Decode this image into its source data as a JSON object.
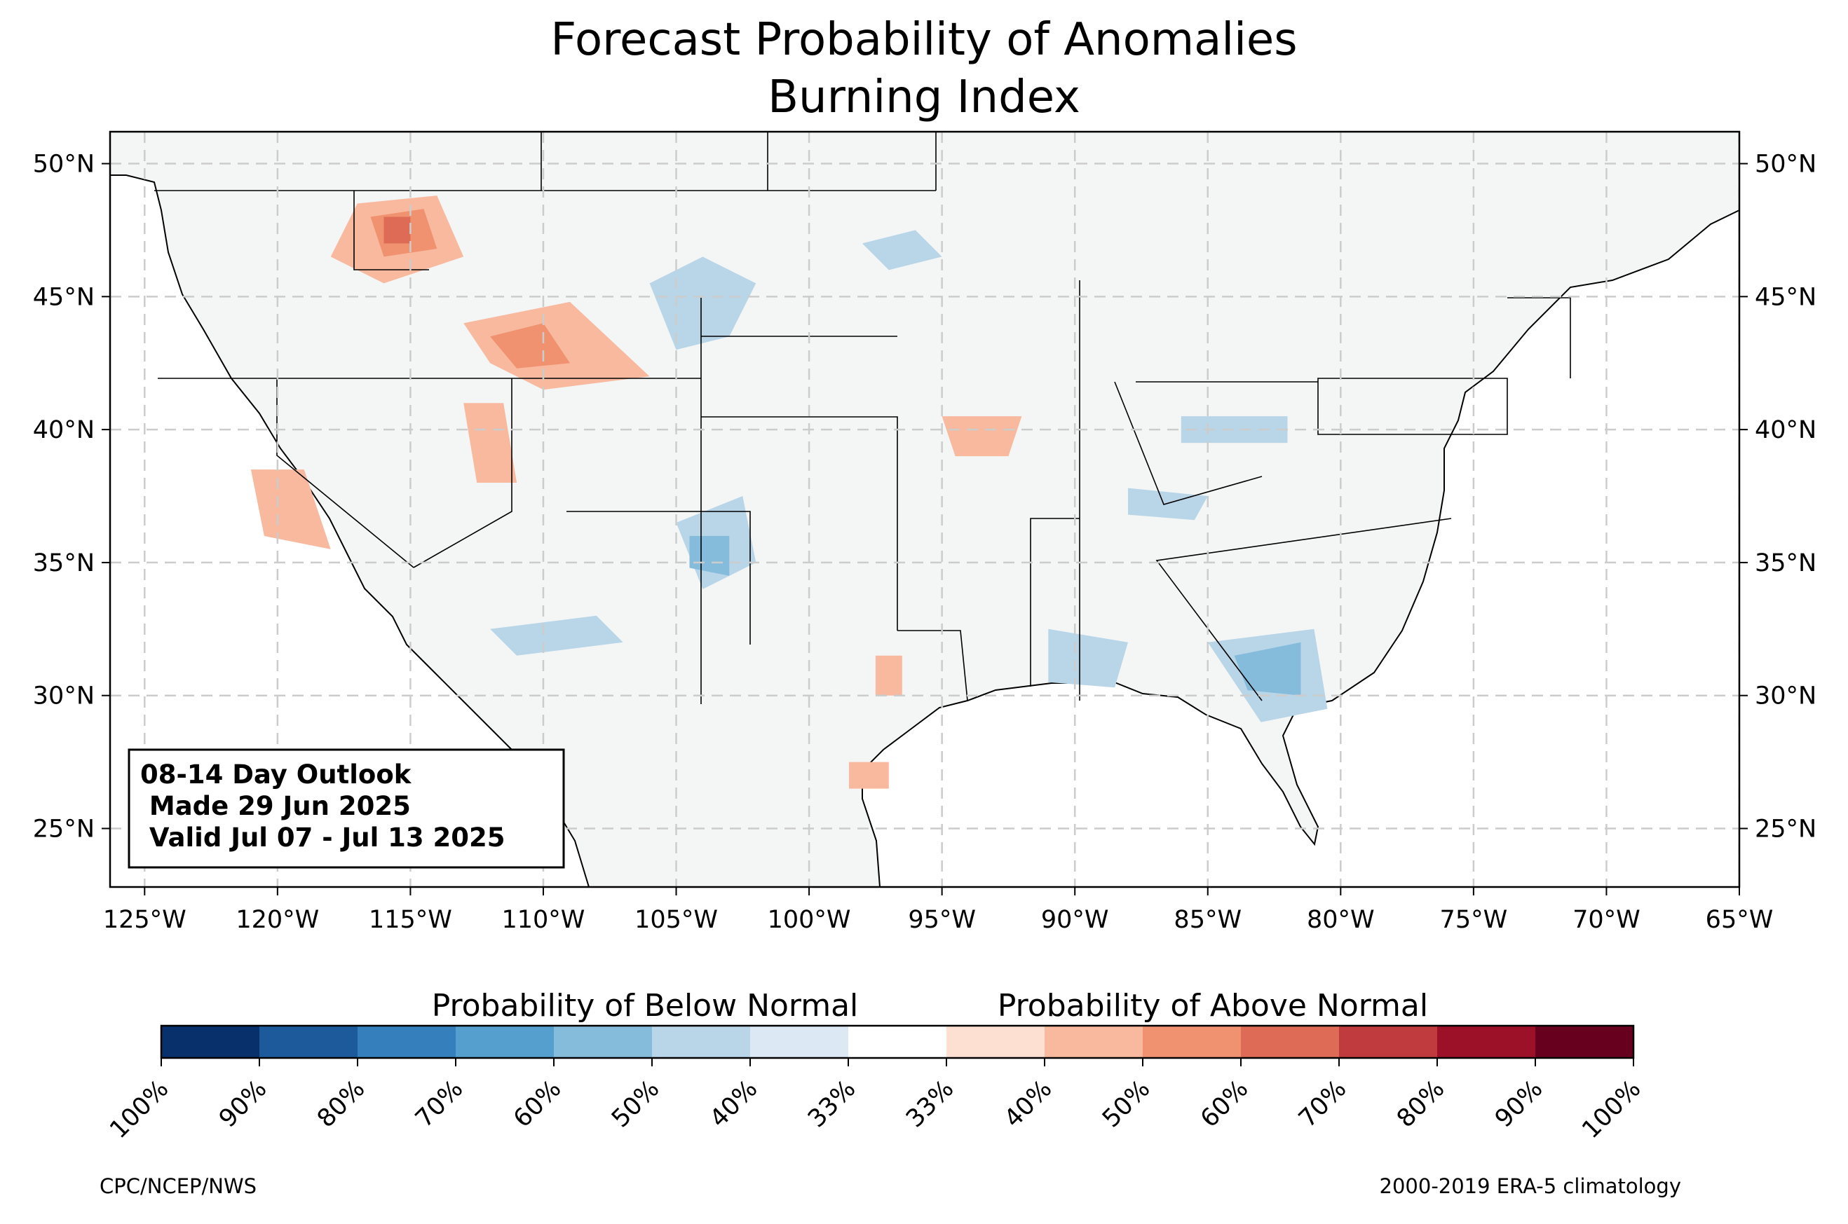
{
  "title": {
    "line1": "Forecast Probability of Anomalies",
    "line2": "Burning Index"
  },
  "axes": {
    "lon_ticks": [
      "125°W",
      "120°W",
      "115°W",
      "110°W",
      "105°W",
      "100°W",
      "95°W",
      "90°W",
      "85°W",
      "80°W",
      "75°W",
      "70°W",
      "65°W"
    ],
    "lat_ticks": [
      "50°N",
      "45°N",
      "40°N",
      "35°N",
      "30°N",
      "25°N"
    ],
    "lon_values": [
      -125,
      -120,
      -115,
      -110,
      -105,
      -100,
      -95,
      -90,
      -85,
      -80,
      -75,
      -70,
      -65
    ],
    "lat_values": [
      50,
      45,
      40,
      35,
      30,
      25
    ],
    "lon_range": [
      -126.3,
      -65.0
    ],
    "lat_range": [
      22.8,
      51.2
    ],
    "grid": "on"
  },
  "outlook_box": {
    "line1": "08-14 Day Outlook",
    "line2": " Made 29 Jun 2025",
    "line3": " Valid Jul 07 - Jul 13 2025"
  },
  "legend": {
    "below_label": "Probability of Below Normal",
    "above_label": "Probability of Above Normal",
    "tick_labels": [
      "100%",
      "90%",
      "80%",
      "70%",
      "60%",
      "50%",
      "40%",
      "33%",
      "33%",
      "40%",
      "50%",
      "60%",
      "70%",
      "80%",
      "90%",
      "100%"
    ],
    "colors": [
      "#08306b",
      "#1c5a9c",
      "#3580bc",
      "#549fcd",
      "#86bcdb",
      "#b9d5e8",
      "#dce8f3",
      "#ffffff",
      "#fde0d2",
      "#f8b99f",
      "#f0916f",
      "#dd6b55",
      "#c03b3e",
      "#9c1128",
      "#67001f"
    ]
  },
  "footer": {
    "left": "CPC/NCEP/NWS",
    "right": "2000-2019 ERA-5 climatology"
  },
  "colors": {
    "land": "#f4f6f6",
    "grid": "#cccccc"
  },
  "anomaly_regions": [
    {
      "name": "below",
      "level": 1,
      "color": "#b9d5e8",
      "lonlat": [
        [
          -106,
          45.5
        ],
        [
          -104,
          46.5
        ],
        [
          -102,
          45.5
        ],
        [
          -103,
          43.5
        ],
        [
          -105,
          43
        ]
      ]
    },
    {
      "name": "below",
      "level": 1,
      "color": "#b9d5e8",
      "lonlat": [
        [
          -98,
          47
        ],
        [
          -96,
          47.5
        ],
        [
          -95,
          46.5
        ],
        [
          -97,
          46
        ]
      ]
    },
    {
      "name": "below",
      "level": 1,
      "color": "#b9d5e8",
      "lonlat": [
        [
          -105,
          36.5
        ],
        [
          -102.5,
          37.5
        ],
        [
          -102,
          35
        ],
        [
          -104,
          34
        ]
      ]
    },
    {
      "name": "below",
      "level": 1,
      "color": "#b9d5e8",
      "lonlat": [
        [
          -112,
          32.5
        ],
        [
          -108,
          33
        ],
        [
          -107,
          32
        ],
        [
          -111,
          31.5
        ]
      ]
    },
    {
      "name": "below",
      "level": 1,
      "color": "#b9d5e8",
      "lonlat": [
        [
          -85,
          32
        ],
        [
          -81,
          32.5
        ],
        [
          -80.5,
          29.5
        ],
        [
          -83,
          29
        ]
      ]
    },
    {
      "name": "below",
      "level": 1,
      "color": "#b9d5e8",
      "lonlat": [
        [
          -91,
          32.5
        ],
        [
          -88,
          32
        ],
        [
          -88.5,
          30.3
        ],
        [
          -91,
          30.5
        ]
      ]
    },
    {
      "name": "below",
      "level": 1,
      "color": "#b9d5e8",
      "lonlat": [
        [
          -86,
          40.5
        ],
        [
          -82,
          40.5
        ],
        [
          -82,
          39.5
        ],
        [
          -86,
          39.5
        ]
      ]
    },
    {
      "name": "below",
      "level": 1,
      "color": "#b9d5e8",
      "lonlat": [
        [
          -88,
          37.8
        ],
        [
          -85,
          37.5
        ],
        [
          -85.5,
          36.6
        ],
        [
          -88,
          36.8
        ]
      ]
    },
    {
      "name": "below",
      "level": 2,
      "color": "#86bcdb",
      "lonlat": [
        [
          -104.5,
          36
        ],
        [
          -103,
          36
        ],
        [
          -103,
          34.5
        ],
        [
          -104.5,
          34.8
        ]
      ]
    },
    {
      "name": "below",
      "level": 2,
      "color": "#86bcdb",
      "lonlat": [
        [
          -84,
          31.5
        ],
        [
          -81.5,
          32
        ],
        [
          -81.5,
          30
        ],
        [
          -83.5,
          30.2
        ]
      ]
    },
    {
      "name": "above",
      "level": 1,
      "color": "#f8b99f",
      "lonlat": [
        [
          -117,
          48.5
        ],
        [
          -114,
          48.8
        ],
        [
          -113,
          46.5
        ],
        [
          -116,
          45.5
        ],
        [
          -118,
          46.5
        ]
      ]
    },
    {
      "name": "above",
      "level": 1,
      "color": "#f8b99f",
      "lonlat": [
        [
          -113,
          44
        ],
        [
          -109,
          44.8
        ],
        [
          -106,
          42
        ],
        [
          -110,
          41.5
        ],
        [
          -112,
          42.5
        ]
      ]
    },
    {
      "name": "above",
      "level": 1,
      "color": "#f8b99f",
      "lonlat": [
        [
          -113,
          41
        ],
        [
          -111.5,
          41
        ],
        [
          -111,
          38
        ],
        [
          -112.5,
          38
        ]
      ]
    },
    {
      "name": "above",
      "level": 1,
      "color": "#f8b99f",
      "lonlat": [
        [
          -121,
          38.5
        ],
        [
          -119,
          38.5
        ],
        [
          -118,
          35.5
        ],
        [
          -120.5,
          36
        ]
      ]
    },
    {
      "name": "above",
      "level": 1,
      "color": "#f8b99f",
      "lonlat": [
        [
          -97.5,
          31.5
        ],
        [
          -96.5,
          31.5
        ],
        [
          -96.5,
          30
        ],
        [
          -97.5,
          30
        ]
      ]
    },
    {
      "name": "above",
      "level": 1,
      "color": "#f8b99f",
      "lonlat": [
        [
          -98.5,
          27.5
        ],
        [
          -97,
          27.5
        ],
        [
          -97,
          26.5
        ],
        [
          -98.5,
          26.5
        ]
      ]
    },
    {
      "name": "above",
      "level": 1,
      "color": "#f8b99f",
      "lonlat": [
        [
          -95,
          40.5
        ],
        [
          -92,
          40.5
        ],
        [
          -92.5,
          39
        ],
        [
          -94.5,
          39
        ]
      ]
    },
    {
      "name": "above",
      "level": 2,
      "color": "#f0916f",
      "lonlat": [
        [
          -116.5,
          48
        ],
        [
          -114.5,
          48.3
        ],
        [
          -114,
          46.8
        ],
        [
          -116,
          46.5
        ]
      ]
    },
    {
      "name": "above",
      "level": 2,
      "color": "#f0916f",
      "lonlat": [
        [
          -112,
          43.5
        ],
        [
          -110,
          44
        ],
        [
          -109,
          42.5
        ],
        [
          -111,
          42.3
        ]
      ]
    },
    {
      "name": "above",
      "level": 3,
      "color": "#dd6b55",
      "lonlat": [
        [
          -116,
          48
        ],
        [
          -115,
          48
        ],
        [
          -115,
          47
        ],
        [
          -116,
          47
        ]
      ]
    }
  ]
}
